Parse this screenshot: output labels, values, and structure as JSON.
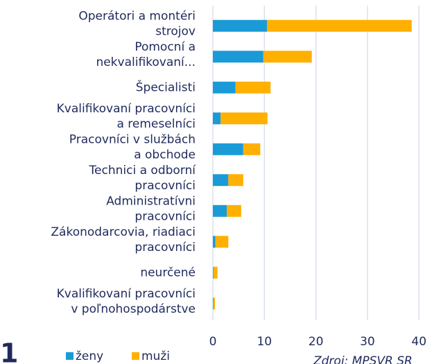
{
  "chart_data": {
    "type": "bar",
    "orientation": "horizontal",
    "stacked": true,
    "categories": [
      [
        "Operátori a montéri",
        "strojov"
      ],
      [
        "Pomocní a",
        "nekvalifikovaní..."
      ],
      [
        "Špecialisti"
      ],
      [
        "Kvalifikovaní pracovníci",
        "a remeselníci"
      ],
      [
        "Pracovníci v službách",
        "a obchode"
      ],
      [
        "Technici a odborní",
        "pracovníci"
      ],
      [
        "Administratívni",
        "pracovníci"
      ],
      [
        "Zákonodarcovia, riadiaci",
        "pracovníci"
      ],
      [
        "neurčené"
      ],
      [
        "Kvalifikovaní pracovníci",
        "v poľnohospodárstve"
      ]
    ],
    "series": [
      {
        "name": "ženy",
        "color": "#1a9bd7",
        "values": [
          10.5,
          9.8,
          4.4,
          1.5,
          5.9,
          3.0,
          2.7,
          0.5,
          0.1,
          0.1
        ]
      },
      {
        "name": "muži",
        "color": "#ffb000",
        "values": [
          28.1,
          9.4,
          6.8,
          9.1,
          3.3,
          2.9,
          2.8,
          2.5,
          0.8,
          0.3
        ]
      }
    ],
    "xlim": [
      0,
      44
    ],
    "xticks": [
      0,
      10,
      20,
      30,
      40
    ],
    "grid": true,
    "figure_number": "1",
    "source": "Zdroj: MPSVR SR"
  }
}
